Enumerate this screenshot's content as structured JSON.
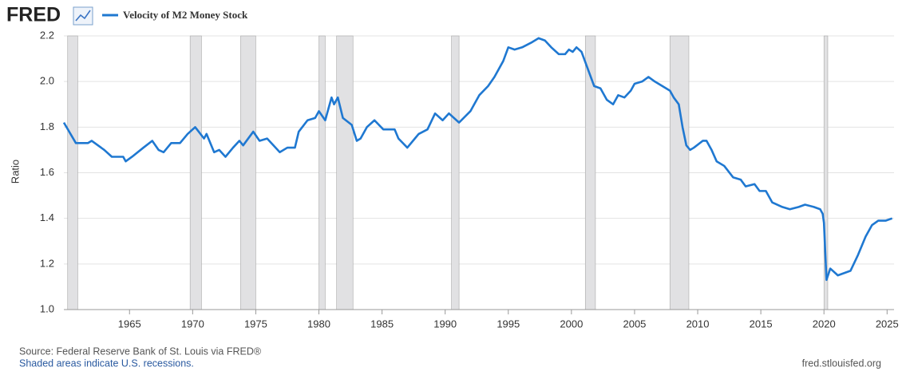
{
  "chart_data": {
    "type": "line",
    "logo": "FRED",
    "y_label": "Ratio",
    "source": "Source: Federal Reserve Bank of St. Louis via FRED®",
    "note": "Shaded areas indicate U.S. recessions.",
    "url": "fred.stlouisfed.org",
    "xlim": [
      1959.8,
      2025.55
    ],
    "ylim": [
      1.0,
      2.2
    ],
    "xticks": [
      1965,
      1970,
      1975,
      1980,
      1985,
      1990,
      1995,
      2000,
      2005,
      2010,
      2015,
      2020,
      2025
    ],
    "yticks": [
      {
        "value": 1,
        "label": "1.0"
      },
      1.2,
      1.4,
      1.6,
      1.8,
      {
        "value": 2,
        "label": "2.0"
      },
      2.2
    ],
    "grid": true,
    "recessions": [
      [
        1960.1,
        1960.9
      ],
      [
        1969.8,
        1970.7
      ],
      [
        1973.8,
        1975.0
      ],
      [
        1980.0,
        1980.5
      ],
      [
        1981.4,
        1982.7
      ],
      [
        1990.5,
        1991.1
      ],
      [
        2001.1,
        2001.9
      ],
      [
        2007.8,
        2009.3
      ],
      [
        2020.0,
        2020.3
      ]
    ],
    "x": [
      1959.8,
      1960.75,
      1961.7,
      1962.0,
      1963.0,
      1963.6,
      1964.5,
      1964.7,
      1965.2,
      1966.1,
      1966.8,
      1967.3,
      1967.7,
      1968.3,
      1969.0,
      1969.6,
      1970.2,
      1970.9,
      1971.1,
      1971.7,
      1972.1,
      1972.6,
      1973.2,
      1973.7,
      1974.0,
      1974.8,
      1975.3,
      1975.9,
      1976.9,
      1977.5,
      1978.1,
      1978.4,
      1979.1,
      1979.7,
      1980.0,
      1980.5,
      1981.0,
      1981.2,
      1981.5,
      1981.9,
      1982.6,
      1983.0,
      1983.3,
      1983.8,
      1984.4,
      1985.1,
      1986.0,
      1986.3,
      1987.0,
      1987.6,
      1987.9,
      1988.6,
      1989.2,
      1989.8,
      1990.3,
      1991.1,
      1992.0,
      1992.7,
      1993.4,
      1993.9,
      1994.6,
      1995.0,
      1995.5,
      1996.1,
      1996.8,
      1997.4,
      1997.9,
      1998.4,
      1999.0,
      1999.5,
      1999.8,
      2000.1,
      2000.4,
      2000.8,
      2001.2,
      2001.8,
      2002.3,
      2002.8,
      2003.3,
      2003.7,
      2004.2,
      2004.7,
      2005.0,
      2005.6,
      2006.1,
      2006.6,
      2007.2,
      2007.8,
      2008.1,
      2008.5,
      2008.8,
      2009.1,
      2009.4,
      2009.7,
      2010.4,
      2010.7,
      2011.1,
      2011.5,
      2012.1,
      2012.8,
      2013.4,
      2013.8,
      2014.5,
      2014.9,
      2015.4,
      2015.9,
      2016.7,
      2017.3,
      2018.0,
      2018.5,
      2019.2,
      2019.7,
      2019.9,
      2020.0,
      2020.2,
      2020.5,
      2021.1,
      2021.6,
      2022.1,
      2022.7,
      2023.3,
      2023.8,
      2024.3,
      2024.9,
      2025.4
    ],
    "series": [
      {
        "name": "Velocity of M2 Money Stock",
        "color": "#1f78d1",
        "values": [
          1.82,
          1.73,
          1.73,
          1.74,
          1.7,
          1.67,
          1.67,
          1.65,
          1.67,
          1.71,
          1.74,
          1.7,
          1.69,
          1.73,
          1.73,
          1.77,
          1.8,
          1.75,
          1.77,
          1.69,
          1.7,
          1.67,
          1.71,
          1.74,
          1.72,
          1.78,
          1.74,
          1.75,
          1.69,
          1.71,
          1.71,
          1.78,
          1.83,
          1.84,
          1.87,
          1.83,
          1.93,
          1.9,
          1.93,
          1.84,
          1.81,
          1.74,
          1.75,
          1.8,
          1.83,
          1.79,
          1.79,
          1.75,
          1.71,
          1.75,
          1.77,
          1.79,
          1.86,
          1.83,
          1.86,
          1.82,
          1.87,
          1.94,
          1.98,
          2.02,
          2.09,
          2.15,
          2.14,
          2.15,
          2.17,
          2.19,
          2.18,
          2.15,
          2.12,
          2.12,
          2.14,
          2.13,
          2.15,
          2.13,
          2.07,
          1.98,
          1.97,
          1.92,
          1.9,
          1.94,
          1.93,
          1.96,
          1.99,
          2.0,
          2.02,
          2.0,
          1.98,
          1.96,
          1.93,
          1.9,
          1.8,
          1.72,
          1.7,
          1.71,
          1.74,
          1.74,
          1.7,
          1.65,
          1.63,
          1.58,
          1.57,
          1.54,
          1.55,
          1.52,
          1.52,
          1.47,
          1.45,
          1.44,
          1.45,
          1.46,
          1.45,
          1.44,
          1.42,
          1.38,
          1.13,
          1.18,
          1.15,
          1.16,
          1.17,
          1.24,
          1.32,
          1.37,
          1.39,
          1.39,
          1.4
        ]
      }
    ]
  }
}
